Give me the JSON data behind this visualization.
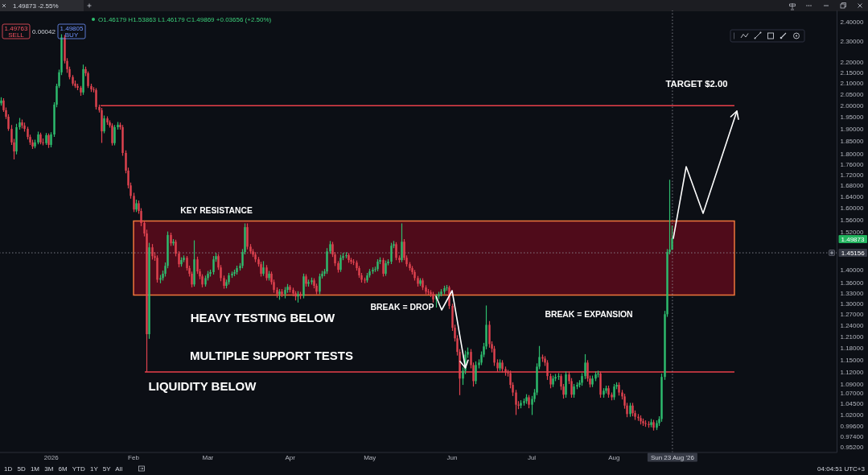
{
  "chart_data": {
    "type": "candlestick",
    "subtitle": "O1.46179 H1.53863 L1.46179 C1.49869 +0.03656 (+2.50%)",
    "x": [
      "2025-12-13",
      "2025-12-14",
      "2025-12-15",
      "2025-12-16",
      "2025-12-17",
      "2025-12-18",
      "2025-12-19",
      "2025-12-20",
      "2025-12-21",
      "2025-12-22",
      "2025-12-23",
      "2025-12-24",
      "2025-12-25",
      "2025-12-26",
      "2025-12-27",
      "2025-12-28",
      "2025-12-29",
      "2025-12-30",
      "2025-12-31",
      "2026-01-01",
      "2026-01-02",
      "2026-01-03",
      "2026-01-04",
      "2026-01-05",
      "2026-01-06",
      "2026-01-07",
      "2026-01-08",
      "2026-01-09",
      "2026-01-10",
      "2026-01-11",
      "2026-01-12",
      "2026-01-13",
      "2026-01-14",
      "2026-01-15",
      "2026-01-16",
      "2026-01-17",
      "2026-01-18",
      "2026-01-19",
      "2026-01-20",
      "2026-01-21",
      "2026-01-22",
      "2026-01-23",
      "2026-01-24",
      "2026-01-25",
      "2026-01-26",
      "2026-01-27",
      "2026-01-28",
      "2026-01-29",
      "2026-01-30",
      "2026-01-31",
      "2026-02-01",
      "2026-02-02",
      "2026-02-03",
      "2026-02-04",
      "2026-02-05",
      "2026-02-06",
      "2026-02-07",
      "2026-02-08",
      "2026-02-09",
      "2026-02-10",
      "2026-02-11",
      "2026-02-12",
      "2026-02-13",
      "2026-02-14",
      "2026-02-15",
      "2026-02-16",
      "2026-02-17",
      "2026-02-18",
      "2026-02-19",
      "2026-02-20",
      "2026-02-21",
      "2026-02-22",
      "2026-02-23",
      "2026-02-24",
      "2026-02-25",
      "2026-02-26",
      "2026-02-27",
      "2026-02-28",
      "2026-03-01",
      "2026-03-02",
      "2026-03-03",
      "2026-03-04",
      "2026-03-05",
      "2026-03-06",
      "2026-03-07",
      "2026-03-08",
      "2026-03-09",
      "2026-03-10",
      "2026-03-11",
      "2026-03-12",
      "2026-03-13",
      "2026-03-14",
      "2026-03-15",
      "2026-03-16",
      "2026-03-17",
      "2026-03-18",
      "2026-03-19",
      "2026-03-20",
      "2026-03-21",
      "2026-03-22",
      "2026-03-23",
      "2026-03-24",
      "2026-03-25",
      "2026-03-26",
      "2026-03-27",
      "2026-03-28",
      "2026-03-29",
      "2026-03-30",
      "2026-03-31",
      "2026-04-01",
      "2026-04-02",
      "2026-04-03",
      "2026-04-04",
      "2026-04-05",
      "2026-04-06",
      "2026-04-07",
      "2026-04-08",
      "2026-04-09",
      "2026-04-10",
      "2026-04-11",
      "2026-04-12",
      "2026-04-13",
      "2026-04-14",
      "2026-04-15",
      "2026-04-16",
      "2026-04-17",
      "2026-04-18",
      "2026-04-19",
      "2026-04-20",
      "2026-04-21",
      "2026-04-22",
      "2026-04-23",
      "2026-04-24",
      "2026-04-25",
      "2026-04-26",
      "2026-04-27",
      "2026-04-28",
      "2026-04-29",
      "2026-04-30",
      "2026-05-01",
      "2026-05-02",
      "2026-05-03",
      "2026-05-04",
      "2026-05-05",
      "2026-05-06",
      "2026-05-07",
      "2026-05-08",
      "2026-05-09",
      "2026-05-10",
      "2026-05-11",
      "2026-05-12",
      "2026-05-13",
      "2026-05-14",
      "2026-05-15",
      "2026-05-16",
      "2026-05-17",
      "2026-05-18",
      "2026-05-19",
      "2026-05-20",
      "2026-05-21",
      "2026-05-22",
      "2026-05-23",
      "2026-05-24",
      "2026-05-25",
      "2026-05-26",
      "2026-05-27",
      "2026-05-28",
      "2026-05-29",
      "2026-05-30",
      "2026-05-31",
      "2026-06-01",
      "2026-06-02",
      "2026-06-03",
      "2026-06-04",
      "2026-06-05",
      "2026-06-06",
      "2026-06-07",
      "2026-06-08",
      "2026-06-09",
      "2026-06-10",
      "2026-06-11",
      "2026-06-12",
      "2026-06-13",
      "2026-06-14",
      "2026-06-15",
      "2026-06-16",
      "2026-06-17",
      "2026-06-18",
      "2026-06-19",
      "2026-06-20",
      "2026-06-21",
      "2026-06-22",
      "2026-06-23",
      "2026-06-24",
      "2026-06-25",
      "2026-06-26",
      "2026-06-27",
      "2026-06-28",
      "2026-06-29",
      "2026-06-30",
      "2026-07-01",
      "2026-07-02",
      "2026-07-03",
      "2026-07-04",
      "2026-07-05",
      "2026-07-06",
      "2026-07-07",
      "2026-07-08",
      "2026-07-09",
      "2026-07-10",
      "2026-07-11",
      "2026-07-12",
      "2026-07-13",
      "2026-07-14",
      "2026-07-15",
      "2026-07-16",
      "2026-07-17",
      "2026-07-18",
      "2026-07-19",
      "2026-07-20",
      "2026-07-21",
      "2026-07-22",
      "2026-07-23",
      "2026-07-24",
      "2026-07-25",
      "2026-07-26",
      "2026-07-27",
      "2026-07-28",
      "2026-07-29",
      "2026-07-30",
      "2026-07-31",
      "2026-08-01",
      "2026-08-02",
      "2026-08-03",
      "2026-08-04",
      "2026-08-05",
      "2026-08-06",
      "2026-08-07",
      "2026-08-08",
      "2026-08-09",
      "2026-08-10",
      "2026-08-11",
      "2026-08-12",
      "2026-08-13",
      "2026-08-14",
      "2026-08-15",
      "2026-08-16",
      "2026-08-17",
      "2026-08-18",
      "2026-08-19",
      "2026-08-20",
      "2026-08-21",
      "2026-08-22",
      "2026-08-23"
    ],
    "ohlc": [
      [
        2.01,
        2.035,
        2.002,
        2.022
      ],
      [
        2.022,
        2.03,
        1.975,
        1.98
      ],
      [
        1.98,
        1.99,
        1.945,
        1.952
      ],
      [
        1.952,
        1.96,
        1.895,
        1.901
      ],
      [
        1.901,
        1.915,
        1.838,
        1.846
      ],
      [
        1.846,
        1.858,
        1.781,
        1.81
      ],
      [
        1.81,
        1.92,
        1.8,
        1.908
      ],
      [
        1.908,
        1.945,
        1.9,
        1.928
      ],
      [
        1.928,
        1.938,
        1.905,
        1.915
      ],
      [
        1.915,
        1.925,
        1.892,
        1.901
      ],
      [
        1.901,
        1.908,
        1.86,
        1.868
      ],
      [
        1.868,
        1.875,
        1.838,
        1.846
      ],
      [
        1.846,
        1.855,
        1.822,
        1.83
      ],
      [
        1.83,
        1.855,
        1.824,
        1.846
      ],
      [
        1.846,
        1.888,
        1.84,
        1.878
      ],
      [
        1.878,
        1.884,
        1.84,
        1.846
      ],
      [
        1.846,
        1.86,
        1.836,
        1.843
      ],
      [
        1.843,
        1.882,
        1.838,
        1.875
      ],
      [
        1.875,
        1.88,
        1.826,
        1.836
      ],
      [
        1.836,
        1.885,
        1.828,
        1.878
      ],
      [
        1.878,
        2.012,
        1.87,
        2.004
      ],
      [
        2.004,
        2.095,
        1.995,
        2.087
      ],
      [
        2.087,
        2.16,
        2.08,
        2.15
      ],
      [
        2.15,
        2.334,
        2.14,
        2.32
      ],
      [
        2.32,
        2.33,
        2.195,
        2.204
      ],
      [
        2.204,
        2.215,
        2.15,
        2.165
      ],
      [
        2.165,
        2.175,
        2.12,
        2.128
      ],
      [
        2.128,
        2.135,
        2.09,
        2.098
      ],
      [
        2.098,
        2.11,
        2.08,
        2.087
      ],
      [
        2.087,
        2.095,
        2.07,
        2.079
      ],
      [
        2.079,
        2.085,
        2.045,
        2.058
      ],
      [
        2.058,
        2.184,
        2.05,
        2.165
      ],
      [
        2.165,
        2.175,
        2.135,
        2.146
      ],
      [
        2.146,
        2.152,
        2.08,
        2.087
      ],
      [
        2.087,
        2.095,
        2.062,
        2.072
      ],
      [
        2.072,
        2.08,
        2.06,
        2.069
      ],
      [
        2.069,
        2.075,
        1.985,
        1.994
      ],
      [
        1.994,
        2.002,
        1.972,
        1.98
      ],
      [
        1.98,
        1.988,
        1.846,
        1.891
      ],
      [
        1.891,
        1.955,
        1.885,
        1.945
      ],
      [
        1.945,
        1.952,
        1.92,
        1.928
      ],
      [
        1.928,
        1.935,
        1.908,
        1.915
      ],
      [
        1.915,
        1.922,
        1.835,
        1.843
      ],
      [
        1.843,
        1.915,
        1.836,
        1.908
      ],
      [
        1.908,
        1.928,
        1.9,
        1.918
      ],
      [
        1.918,
        1.925,
        1.9,
        1.908
      ],
      [
        1.908,
        1.915,
        1.795,
        1.804
      ],
      [
        1.804,
        1.812,
        1.728,
        1.736
      ],
      [
        1.736,
        1.745,
        1.672,
        1.681
      ],
      [
        1.681,
        1.69,
        1.635,
        1.643
      ],
      [
        1.643,
        1.652,
        1.588,
        1.595
      ],
      [
        1.595,
        1.628,
        1.588,
        1.617
      ],
      [
        1.617,
        1.625,
        1.582,
        1.59
      ],
      [
        1.59,
        1.598,
        1.54,
        1.549
      ],
      [
        1.549,
        1.556,
        1.506,
        1.514
      ],
      [
        1.514,
        1.525,
        1.121,
        1.216
      ],
      [
        1.216,
        1.482,
        1.205,
        1.469
      ],
      [
        1.469,
        1.478,
        1.432,
        1.441
      ],
      [
        1.441,
        1.452,
        1.428,
        1.436
      ],
      [
        1.436,
        1.442,
        1.362,
        1.369
      ],
      [
        1.369,
        1.382,
        1.36,
        1.374
      ],
      [
        1.374,
        1.395,
        1.368,
        1.387
      ],
      [
        1.387,
        1.42,
        1.38,
        1.411
      ],
      [
        1.411,
        1.519,
        1.405,
        1.509
      ],
      [
        1.509,
        1.515,
        1.475,
        1.482
      ],
      [
        1.482,
        1.494,
        1.476,
        1.487
      ],
      [
        1.487,
        1.492,
        1.442,
        1.449
      ],
      [
        1.449,
        1.455,
        1.408,
        1.416
      ],
      [
        1.416,
        1.436,
        1.41,
        1.429
      ],
      [
        1.429,
        1.442,
        1.424,
        1.436
      ],
      [
        1.436,
        1.44,
        1.398,
        1.404
      ],
      [
        1.404,
        1.41,
        1.38,
        1.387
      ],
      [
        1.387,
        1.392,
        1.348,
        1.355
      ],
      [
        1.355,
        1.49,
        1.35,
        1.431
      ],
      [
        1.431,
        1.438,
        1.388,
        1.394
      ],
      [
        1.394,
        1.4,
        1.372,
        1.379
      ],
      [
        1.379,
        1.384,
        1.348,
        1.355
      ],
      [
        1.355,
        1.38,
        1.35,
        1.374
      ],
      [
        1.374,
        1.394,
        1.368,
        1.387
      ],
      [
        1.387,
        1.398,
        1.38,
        1.392
      ],
      [
        1.392,
        1.44,
        1.386,
        1.431
      ],
      [
        1.431,
        1.45,
        1.425,
        1.441
      ],
      [
        1.441,
        1.446,
        1.4,
        1.406
      ],
      [
        1.406,
        1.412,
        1.366,
        1.374
      ],
      [
        1.374,
        1.38,
        1.344,
        1.351
      ],
      [
        1.351,
        1.368,
        1.345,
        1.362
      ],
      [
        1.362,
        1.388,
        1.356,
        1.382
      ],
      [
        1.382,
        1.392,
        1.376,
        1.387
      ],
      [
        1.387,
        1.398,
        1.381,
        1.392
      ],
      [
        1.392,
        1.41,
        1.386,
        1.404
      ],
      [
        1.404,
        1.418,
        1.398,
        1.411
      ],
      [
        1.411,
        1.462,
        1.405,
        1.454
      ],
      [
        1.454,
        1.546,
        1.448,
        1.535
      ],
      [
        1.535,
        1.546,
        1.464,
        1.471
      ],
      [
        1.471,
        1.478,
        1.45,
        1.456
      ],
      [
        1.456,
        1.462,
        1.44,
        1.446
      ],
      [
        1.446,
        1.452,
        1.424,
        1.431
      ],
      [
        1.431,
        1.437,
        1.41,
        1.416
      ],
      [
        1.416,
        1.422,
        1.38,
        1.387
      ],
      [
        1.387,
        1.424,
        1.382,
        1.406
      ],
      [
        1.406,
        1.412,
        1.368,
        1.374
      ],
      [
        1.374,
        1.394,
        1.368,
        1.387
      ],
      [
        1.387,
        1.392,
        1.356,
        1.362
      ],
      [
        1.362,
        1.368,
        1.332,
        1.339
      ],
      [
        1.339,
        1.345,
        1.318,
        1.327
      ],
      [
        1.327,
        1.34,
        1.312,
        1.334
      ],
      [
        1.334,
        1.34,
        1.32,
        1.327
      ],
      [
        1.327,
        1.346,
        1.316,
        1.339
      ],
      [
        1.339,
        1.355,
        1.332,
        1.348
      ],
      [
        1.348,
        1.352,
        1.333,
        1.339
      ],
      [
        1.339,
        1.344,
        1.322,
        1.329
      ],
      [
        1.329,
        1.334,
        1.31,
        1.32
      ],
      [
        1.32,
        1.334,
        1.304,
        1.327
      ],
      [
        1.327,
        1.332,
        1.314,
        1.322
      ],
      [
        1.322,
        1.386,
        1.316,
        1.379
      ],
      [
        1.379,
        1.384,
        1.35,
        1.357
      ],
      [
        1.357,
        1.368,
        1.35,
        1.362
      ],
      [
        1.362,
        1.374,
        1.356,
        1.367
      ],
      [
        1.367,
        1.372,
        1.345,
        1.351
      ],
      [
        1.351,
        1.356,
        1.328,
        1.334
      ],
      [
        1.334,
        1.386,
        1.328,
        1.379
      ],
      [
        1.379,
        1.394,
        1.374,
        1.387
      ],
      [
        1.387,
        1.4,
        1.381,
        1.394
      ],
      [
        1.394,
        1.465,
        1.388,
        1.456
      ],
      [
        1.456,
        1.488,
        1.45,
        1.479
      ],
      [
        1.479,
        1.485,
        1.44,
        1.446
      ],
      [
        1.446,
        1.452,
        1.412,
        1.419
      ],
      [
        1.419,
        1.424,
        1.392,
        1.399
      ],
      [
        1.399,
        1.444,
        1.394,
        1.436
      ],
      [
        1.436,
        1.45,
        1.43,
        1.441
      ],
      [
        1.441,
        1.452,
        1.436,
        1.444
      ],
      [
        1.444,
        1.449,
        1.422,
        1.429
      ],
      [
        1.429,
        1.434,
        1.418,
        1.424
      ],
      [
        1.424,
        1.43,
        1.415,
        1.421
      ],
      [
        1.421,
        1.426,
        1.398,
        1.404
      ],
      [
        1.404,
        1.409,
        1.376,
        1.382
      ],
      [
        1.382,
        1.388,
        1.362,
        1.369
      ],
      [
        1.369,
        1.374,
        1.36,
        1.367
      ],
      [
        1.367,
        1.388,
        1.362,
        1.382
      ],
      [
        1.382,
        1.4,
        1.377,
        1.394
      ],
      [
        1.394,
        1.405,
        1.388,
        1.399
      ],
      [
        1.399,
        1.407,
        1.394,
        1.401
      ],
      [
        1.401,
        1.43,
        1.396,
        1.424
      ],
      [
        1.424,
        1.436,
        1.418,
        1.429
      ],
      [
        1.429,
        1.434,
        1.38,
        1.387
      ],
      [
        1.387,
        1.426,
        1.382,
        1.419
      ],
      [
        1.419,
        1.43,
        1.414,
        1.424
      ],
      [
        1.424,
        1.482,
        1.418,
        1.474
      ],
      [
        1.474,
        1.488,
        1.468,
        1.479
      ],
      [
        1.479,
        1.484,
        1.43,
        1.436
      ],
      [
        1.436,
        1.442,
        1.422,
        1.429
      ],
      [
        1.429,
        1.546,
        1.424,
        1.487
      ],
      [
        1.487,
        1.494,
        1.43,
        1.436
      ],
      [
        1.436,
        1.442,
        1.41,
        1.416
      ],
      [
        1.416,
        1.421,
        1.398,
        1.404
      ],
      [
        1.404,
        1.409,
        1.386,
        1.392
      ],
      [
        1.392,
        1.397,
        1.368,
        1.374
      ],
      [
        1.374,
        1.379,
        1.35,
        1.357
      ],
      [
        1.357,
        1.372,
        1.352,
        1.367
      ],
      [
        1.367,
        1.372,
        1.34,
        1.346
      ],
      [
        1.346,
        1.351,
        1.328,
        1.334
      ],
      [
        1.334,
        1.34,
        1.326,
        1.332
      ],
      [
        1.332,
        1.337,
        1.32,
        1.327
      ],
      [
        1.327,
        1.332,
        1.304,
        1.311
      ],
      [
        1.311,
        1.326,
        1.29,
        1.32
      ],
      [
        1.32,
        1.332,
        1.314,
        1.327
      ],
      [
        1.327,
        1.34,
        1.322,
        1.334
      ],
      [
        1.334,
        1.35,
        1.328,
        1.344
      ],
      [
        1.344,
        1.352,
        1.338,
        1.346
      ],
      [
        1.346,
        1.35,
        1.286,
        1.293
      ],
      [
        1.293,
        1.298,
        1.226,
        1.233
      ],
      [
        1.233,
        1.24,
        1.198,
        1.205
      ],
      [
        1.205,
        1.212,
        1.162,
        1.17
      ],
      [
        1.17,
        1.176,
        1.066,
        1.104
      ],
      [
        1.104,
        1.13,
        1.09,
        1.123
      ],
      [
        1.123,
        1.172,
        1.116,
        1.163
      ],
      [
        1.163,
        1.18,
        1.156,
        1.17
      ],
      [
        1.17,
        1.176,
        1.13,
        1.137
      ],
      [
        1.137,
        1.142,
        1.086,
        1.098
      ],
      [
        1.098,
        1.145,
        1.092,
        1.137
      ],
      [
        1.137,
        1.15,
        1.13,
        1.143
      ],
      [
        1.143,
        1.17,
        1.138,
        1.163
      ],
      [
        1.163,
        1.192,
        1.158,
        1.184
      ],
      [
        1.184,
        1.293,
        1.178,
        1.241
      ],
      [
        1.241,
        1.25,
        1.182,
        1.19
      ],
      [
        1.19,
        1.196,
        1.17,
        1.178
      ],
      [
        1.178,
        1.184,
        1.136,
        1.143
      ],
      [
        1.143,
        1.15,
        1.122,
        1.129
      ],
      [
        1.129,
        1.15,
        1.124,
        1.143
      ],
      [
        1.143,
        1.148,
        1.12,
        1.127
      ],
      [
        1.127,
        1.132,
        1.112,
        1.119
      ],
      [
        1.119,
        1.124,
        1.11,
        1.117
      ],
      [
        1.117,
        1.122,
        1.082,
        1.089
      ],
      [
        1.089,
        1.094,
        1.064,
        1.071
      ],
      [
        1.071,
        1.076,
        1.021,
        1.043
      ],
      [
        1.043,
        1.05,
        1.034,
        1.041
      ],
      [
        1.041,
        1.052,
        1.036,
        1.047
      ],
      [
        1.047,
        1.056,
        1.042,
        1.051
      ],
      [
        1.051,
        1.066,
        1.046,
        1.06
      ],
      [
        1.06,
        1.064,
        1.036,
        1.043
      ],
      [
        1.043,
        1.062,
        1.021,
        1.056
      ],
      [
        1.056,
        1.078,
        1.05,
        1.071
      ],
      [
        1.071,
        1.14,
        1.066,
        1.133
      ],
      [
        1.133,
        1.184,
        1.128,
        1.157
      ],
      [
        1.157,
        1.162,
        1.146,
        1.153
      ],
      [
        1.153,
        1.158,
        1.136,
        1.143
      ],
      [
        1.143,
        1.148,
        1.102,
        1.11
      ],
      [
        1.11,
        1.115,
        1.082,
        1.09
      ],
      [
        1.09,
        1.11,
        1.085,
        1.104
      ],
      [
        1.104,
        1.114,
        1.099,
        1.108
      ],
      [
        1.108,
        1.116,
        1.102,
        1.11
      ],
      [
        1.11,
        1.114,
        1.078,
        1.085
      ],
      [
        1.085,
        1.09,
        1.058,
        1.066
      ],
      [
        1.066,
        1.12,
        1.06,
        1.114
      ],
      [
        1.114,
        1.12,
        1.092,
        1.098
      ],
      [
        1.098,
        1.104,
        1.06,
        1.066
      ],
      [
        1.066,
        1.09,
        1.06,
        1.085
      ],
      [
        1.085,
        1.094,
        1.08,
        1.089
      ],
      [
        1.089,
        1.099,
        1.084,
        1.094
      ],
      [
        1.094,
        1.116,
        1.088,
        1.11
      ],
      [
        1.11,
        1.163,
        1.104,
        1.143
      ],
      [
        1.143,
        1.148,
        1.098,
        1.104
      ],
      [
        1.104,
        1.11,
        1.084,
        1.09
      ],
      [
        1.09,
        1.11,
        1.085,
        1.104
      ],
      [
        1.104,
        1.12,
        1.099,
        1.114
      ],
      [
        1.114,
        1.122,
        1.108,
        1.116
      ],
      [
        1.116,
        1.12,
        1.06,
        1.066
      ],
      [
        1.066,
        1.08,
        1.06,
        1.075
      ],
      [
        1.075,
        1.086,
        1.07,
        1.081
      ],
      [
        1.081,
        1.086,
        1.06,
        1.066
      ],
      [
        1.066,
        1.07,
        1.054,
        1.06
      ],
      [
        1.06,
        1.09,
        1.055,
        1.085
      ],
      [
        1.085,
        1.094,
        1.08,
        1.089
      ],
      [
        1.089,
        1.094,
        1.065,
        1.071
      ],
      [
        1.071,
        1.076,
        1.056,
        1.062
      ],
      [
        1.062,
        1.067,
        1.035,
        1.041
      ],
      [
        1.041,
        1.046,
        1.016,
        1.022
      ],
      [
        1.022,
        1.046,
        1.017,
        1.041
      ],
      [
        1.041,
        1.046,
        1.018,
        1.024
      ],
      [
        1.024,
        1.029,
        1.01,
        1.016
      ],
      [
        1.016,
        1.021,
        1.008,
        1.013
      ],
      [
        1.013,
        1.018,
        1.0,
        1.006
      ],
      [
        1.006,
        1.011,
        0.997,
        1.002
      ],
      [
        1.002,
        1.007,
        0.995,
        1.0
      ],
      [
        1.0,
        1.005,
        0.993,
        0.998
      ],
      [
        0.998,
        1.01,
        0.994,
        1.004
      ],
      [
        1.004,
        1.008,
        0.987,
        0.992
      ],
      [
        0.992,
        1.007,
        0.988,
        1.002
      ],
      [
        1.002,
        1.016,
        0.997,
        1.011
      ],
      [
        1.011,
        1.115,
        1.006,
        1.108
      ],
      [
        1.108,
        1.278,
        1.102,
        1.27
      ],
      [
        1.27,
        1.462,
        1.264,
        1.454
      ],
      [
        1.454,
        1.7,
        1.448,
        1.46179
      ],
      [
        1.46179,
        1.53863,
        1.46179,
        1.49869
      ]
    ],
    "colors": [
      "#2ebd6e",
      "#e0434f",
      "#e0434f",
      "#e0434f",
      "#e0434f",
      "#e0434f",
      "#2ebd6e",
      "#2ebd6e",
      "#e0434f",
      "#e0434f",
      "#e0434f",
      "#e0434f",
      "#e0434f",
      "#2ebd6e",
      "#2ebd6e",
      "#e0434f",
      "#e0434f",
      "#2ebd6e",
      "#e0434f",
      "#2ebd6e",
      "#2ebd6e",
      "#2ebd6e",
      "#2ebd6e",
      "#2ebd6e",
      "#e0434f",
      "#e0434f",
      "#e0434f",
      "#e0434f",
      "#e0434f",
      "#e0434f",
      "#e0434f",
      "#2ebd6e",
      "#e0434f",
      "#e0434f",
      "#e0434f",
      "#e0434f",
      "#e0434f",
      "#e0434f",
      "#e0434f",
      "#2ebd6e",
      "#e0434f",
      "#e0434f",
      "#e0434f",
      "#2ebd6e",
      "#2ebd6e",
      "#e0434f",
      "#e0434f",
      "#e0434f",
      "#e0434f",
      "#e0434f",
      "#e0434f",
      "#2ebd6e",
      "#e0434f",
      "#e0434f",
      "#e0434f",
      "#e0434f",
      "#2ebd6e",
      "#e0434f",
      "#e0434f",
      "#e0434f",
      "#2ebd6e",
      "#2ebd6e",
      "#2ebd6e",
      "#2ebd6e",
      "#e0434f",
      "#2ebd6e",
      "#e0434f",
      "#e0434f",
      "#2ebd6e",
      "#2ebd6e",
      "#e0434f",
      "#e0434f",
      "#e0434f",
      "#2ebd6e",
      "#e0434f",
      "#e0434f",
      "#e0434f",
      "#2ebd6e",
      "#2ebd6e",
      "#2ebd6e",
      "#2ebd6e",
      "#2ebd6e",
      "#e0434f",
      "#e0434f",
      "#e0434f",
      "#2ebd6e",
      "#2ebd6e",
      "#2ebd6e",
      "#2ebd6e",
      "#2ebd6e",
      "#2ebd6e",
      "#2ebd6e",
      "#2ebd6e",
      "#e0434f",
      "#e0434f",
      "#e0434f",
      "#e0434f",
      "#e0434f",
      "#e0434f",
      "#2ebd6e",
      "#e0434f",
      "#2ebd6e",
      "#e0434f",
      "#e0434f",
      "#e0434f",
      "#2ebd6e",
      "#e0434f",
      "#2ebd6e",
      "#2ebd6e",
      "#e0434f",
      "#e0434f",
      "#e0434f",
      "#2ebd6e",
      "#e0434f",
      "#2ebd6e",
      "#e0434f",
      "#2ebd6e",
      "#2ebd6e",
      "#e0434f",
      "#e0434f",
      "#2ebd6e",
      "#2ebd6e",
      "#2ebd6e",
      "#2ebd6e",
      "#2ebd6e",
      "#e0434f",
      "#e0434f",
      "#e0434f",
      "#2ebd6e",
      "#2ebd6e",
      "#2ebd6e",
      "#e0434f",
      "#e0434f",
      "#e0434f",
      "#e0434f",
      "#e0434f",
      "#e0434f",
      "#e0434f",
      "#2ebd6e",
      "#2ebd6e",
      "#2ebd6e",
      "#2ebd6e",
      "#2ebd6e",
      "#2ebd6e",
      "#e0434f",
      "#2ebd6e",
      "#2ebd6e",
      "#2ebd6e",
      "#2ebd6e",
      "#e0434f",
      "#e0434f",
      "#2ebd6e",
      "#e0434f",
      "#e0434f",
      "#e0434f",
      "#e0434f",
      "#e0434f",
      "#e0434f",
      "#2ebd6e",
      "#e0434f",
      "#e0434f",
      "#e0434f",
      "#e0434f",
      "#e0434f",
      "#2ebd6e",
      "#2ebd6e",
      "#2ebd6e",
      "#2ebd6e",
      "#2ebd6e",
      "#e0434f",
      "#e0434f",
      "#e0434f",
      "#e0434f",
      "#e0434f",
      "#2ebd6e",
      "#2ebd6e",
      "#2ebd6e",
      "#e0434f",
      "#e0434f",
      "#2ebd6e",
      "#2ebd6e",
      "#2ebd6e",
      "#2ebd6e",
      "#2ebd6e",
      "#e0434f",
      "#e0434f",
      "#e0434f",
      "#e0434f",
      "#2ebd6e",
      "#e0434f",
      "#e0434f",
      "#e0434f",
      "#e0434f",
      "#e0434f",
      "#e0434f",
      "#e0434f",
      "#2ebd6e",
      "#2ebd6e",
      "#2ebd6e",
      "#e0434f",
      "#2ebd6e",
      "#2ebd6e",
      "#2ebd6e",
      "#2ebd6e",
      "#e0434f",
      "#e0434f",
      "#e0434f",
      "#e0434f",
      "#2ebd6e",
      "#2ebd6e",
      "#2ebd6e",
      "#e0434f",
      "#e0434f",
      "#2ebd6e",
      "#e0434f",
      "#e0434f",
      "#2ebd6e",
      "#2ebd6e",
      "#2ebd6e",
      "#2ebd6e",
      "#2ebd6e",
      "#e0434f",
      "#e0434f",
      "#2ebd6e",
      "#2ebd6e",
      "#2ebd6e",
      "#e0434f",
      "#2ebd6e",
      "#2ebd6e",
      "#e0434f",
      "#e0434f",
      "#2ebd6e",
      "#2ebd6e",
      "#e0434f",
      "#e0434f",
      "#e0434f",
      "#e0434f",
      "#2ebd6e",
      "#e0434f",
      "#e0434f",
      "#e0434f",
      "#e0434f",
      "#e0434f",
      "#e0434f",
      "#e0434f",
      "#2ebd6e",
      "#e0434f",
      "#2ebd6e",
      "#2ebd6e",
      "#2ebd6e",
      "#2ebd6e",
      "#2ebd6e",
      "#2ebd6e",
      "#2ebd6e"
    ],
    "xlim": [
      "2025-12-12",
      "2026-10-24"
    ],
    "ylim": [
      0.94,
      2.46
    ],
    "log": "y",
    "xticks": [
      {
        "value": "2026-01-01",
        "label": "2026"
      },
      {
        "value": "2026-02-01",
        "label": "Feb"
      },
      {
        "value": "2026-03-01",
        "label": "Mar"
      },
      {
        "value": "2026-04-01",
        "label": "Apr"
      },
      {
        "value": "2026-05-01",
        "label": "May"
      },
      {
        "value": "2026-06-01",
        "label": "Jun"
      },
      {
        "value": "2026-07-01",
        "label": "Jul"
      },
      {
        "value": "2026-08-01",
        "label": "Aug"
      }
    ],
    "yticks": [
      {
        "value": 0.952,
        "label": "0.95200"
      },
      {
        "value": 0.974,
        "label": "0.97400"
      },
      {
        "value": 0.996,
        "label": "0.99600"
      },
      {
        "value": 1.02,
        "label": "1.02000"
      },
      {
        "value": 1.045,
        "label": "1.04500"
      },
      {
        "value": 1.07,
        "label": "1.07000"
      },
      {
        "value": 1.09,
        "label": "1.09000"
      },
      {
        "value": 1.12,
        "label": "1.12000"
      },
      {
        "value": 1.15,
        "label": "1.15000"
      },
      {
        "value": 1.18,
        "label": "1.18000"
      },
      {
        "value": 1.21,
        "label": "1.21000"
      },
      {
        "value": 1.24,
        "label": "1.24000"
      },
      {
        "value": 1.27,
        "label": "1.27000"
      },
      {
        "value": 1.3,
        "label": "1.30000"
      },
      {
        "value": 1.33,
        "label": "1.33000"
      },
      {
        "value": 1.36,
        "label": "1.36000"
      },
      {
        "value": 1.4,
        "label": "1.40000"
      },
      {
        "value": 1.52,
        "label": "1.52000"
      },
      {
        "value": 1.56,
        "label": "1.56000"
      },
      {
        "value": 1.6,
        "label": "1.60000"
      },
      {
        "value": 1.64,
        "label": "1.64000"
      },
      {
        "value": 1.68,
        "label": "1.68000"
      },
      {
        "value": 1.72,
        "label": "1.72000"
      },
      {
        "value": 1.76,
        "label": "1.76000"
      },
      {
        "value": 1.8,
        "label": "1.80000"
      },
      {
        "value": 1.85,
        "label": "1.85000"
      },
      {
        "value": 1.9,
        "label": "1.90000"
      },
      {
        "value": 1.95,
        "label": "1.95000"
      },
      {
        "value": 2.0,
        "label": "2.00000"
      },
      {
        "value": 2.05,
        "label": "2.05000"
      },
      {
        "value": 2.1,
        "label": "2.10000"
      },
      {
        "value": 2.15,
        "label": "2.15000"
      },
      {
        "value": 2.2,
        "label": "2.20000"
      },
      {
        "value": 2.3,
        "label": "2.30000"
      },
      {
        "value": 2.4,
        "label": "2.40000"
      }
    ],
    "ref_lines": [
      {
        "axis": "y",
        "value": 2.0,
        "label": "TARGET $2.00",
        "color": "#e8404a"
      },
      {
        "axis": "y",
        "value": 1.12,
        "color": "#e8404a"
      },
      {
        "axis": "y",
        "value": 1.45156,
        "label": "1.45156",
        "color": "#9598a1",
        "line_style": "dotted"
      },
      {
        "axis": "x",
        "value": "2026-08-23",
        "label": "Sun 23 Aug '26",
        "color": "#9598a1",
        "line_style": "dotted"
      }
    ],
    "bands": [
      {
        "axis": "y",
        "from": 1.324,
        "to": 1.556,
        "label": "KEY RESISTANCE",
        "color": "#5c0b1b"
      }
    ],
    "annotations": [
      "HEAVY TESTING BELOW",
      "MULTIPLE SUPPORT TESTS",
      "LIQUIDITY BELOW",
      {
        "text": "BREAK = DROP",
        "x": "2026-06-06",
        "y": 1.13
      },
      "BREAK = EXPANSION",
      "1.49873",
      "1.49873 -2.55%",
      "1.49763",
      "SELL",
      "0.00042",
      "1.49805",
      "BUY",
      "1D 5D 1M 3M 6M YTD 1Y 5Y All",
      "04:04:51 UTC+3"
    ]
  }
}
